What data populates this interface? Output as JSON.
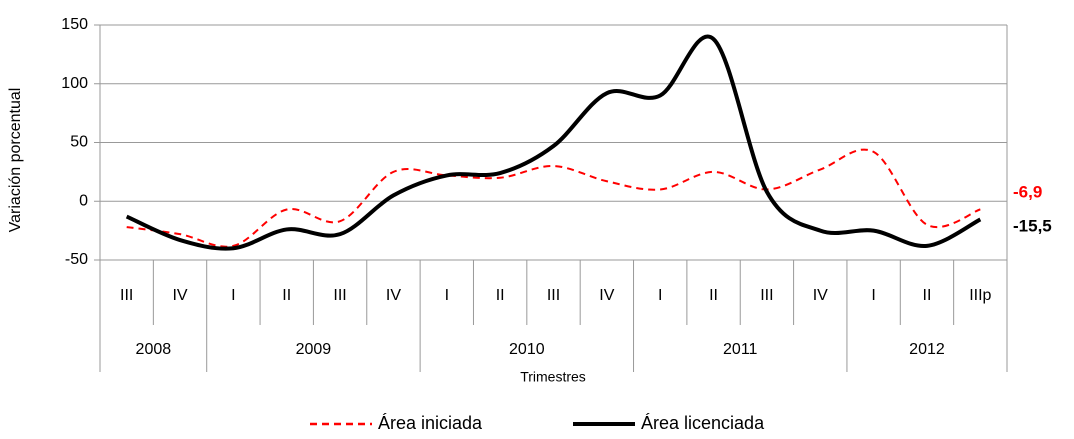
{
  "chart_data": {
    "type": "line",
    "y_label": "Variación porcentual",
    "x_label": "Trimestres",
    "categories": [
      "III",
      "IV",
      "I",
      "II",
      "III",
      "IV",
      "I",
      "II",
      "III",
      "IV",
      "I",
      "II",
      "III",
      "IV",
      "I",
      "II",
      "IIIp"
    ],
    "x_groups": [
      {
        "label": "2008",
        "span": 2
      },
      {
        "label": "2009",
        "span": 4
      },
      {
        "label": "2010",
        "span": 4
      },
      {
        "label": "2011",
        "span": 4
      },
      {
        "label": "2012",
        "span": 3
      }
    ],
    "series": [
      {
        "name": "Área iniciada",
        "color": "#ff0000",
        "dash": true,
        "values": [
          -22,
          -28,
          -38,
          -7,
          -17,
          25,
          22,
          20,
          30,
          17,
          10,
          25,
          10,
          27,
          42,
          -20,
          -6.9
        ],
        "value_labels": [
          null,
          null,
          null,
          null,
          null,
          null,
          null,
          null,
          null,
          null,
          null,
          null,
          null,
          null,
          null,
          null,
          "-6,9"
        ]
      },
      {
        "name": "Área licenciada",
        "color": "#000000",
        "dash": false,
        "values": [
          -13,
          -33,
          -40,
          -24,
          -28,
          5,
          22,
          24,
          47,
          92,
          90,
          138,
          8,
          -25,
          -25,
          -38,
          -15.5
        ],
        "value_labels": [
          null,
          null,
          null,
          null,
          null,
          null,
          null,
          null,
          null,
          null,
          null,
          null,
          null,
          null,
          null,
          null,
          "-15,5"
        ]
      }
    ],
    "ylim": [
      -50,
      150
    ],
    "yticks": [
      -50,
      0,
      50,
      100,
      150
    ],
    "grid": true
  }
}
